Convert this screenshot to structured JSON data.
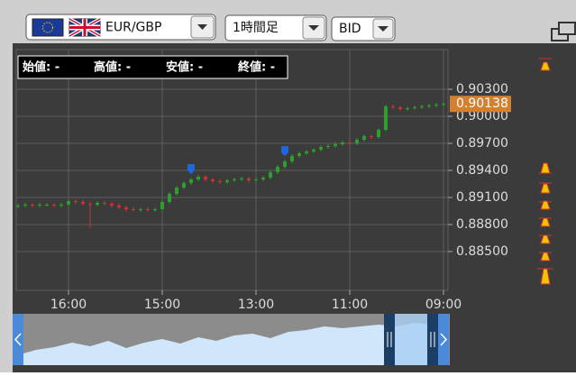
{
  "toolbar": {
    "symbol": "EUR/GBP",
    "timeframe": "1時間足",
    "price_side": "BID"
  },
  "ohlc_header": {
    "open": "始値: -",
    "high": "高値: -",
    "low": "安値: -",
    "close": "終値: -"
  },
  "chart_data": {
    "type": "candlestick",
    "open": [
      0.89,
      0.8901,
      0.8902,
      0.8901,
      0.8902,
      0.8902,
      0.8901,
      0.8902,
      0.8906,
      0.8905,
      0.8903,
      0.8902,
      0.8904,
      0.8903,
      0.8901,
      0.8899,
      0.8897,
      0.8896,
      0.8897,
      0.8896,
      0.8897,
      0.8905,
      0.8914,
      0.8921,
      0.8926,
      0.893,
      0.8933,
      0.893,
      0.8928,
      0.8927,
      0.8929,
      0.893,
      0.8931,
      0.8929,
      0.893,
      0.8932,
      0.8938,
      0.8944,
      0.895,
      0.8956,
      0.8959,
      0.8961,
      0.8963,
      0.8966,
      0.8967,
      0.8969,
      0.8971,
      0.897,
      0.8974,
      0.8978,
      0.8977,
      0.8985,
      0.9011,
      0.901,
      0.9008,
      0.9009,
      0.901,
      0.9011,
      0.9012,
      0.9013
    ],
    "high": [
      0.8903,
      0.8904,
      0.8904,
      0.8904,
      0.8904,
      0.8904,
      0.8904,
      0.8908,
      0.8908,
      0.8907,
      0.8905,
      0.8906,
      0.8906,
      0.8905,
      0.8903,
      0.8901,
      0.8899,
      0.8899,
      0.8899,
      0.8899,
      0.8907,
      0.8916,
      0.8923,
      0.8928,
      0.8932,
      0.8935,
      0.8935,
      0.8932,
      0.893,
      0.8931,
      0.8932,
      0.8933,
      0.8933,
      0.8932,
      0.8934,
      0.894,
      0.8946,
      0.8952,
      0.8958,
      0.8961,
      0.8963,
      0.8965,
      0.8968,
      0.8969,
      0.8971,
      0.8973,
      0.8973,
      0.8976,
      0.898,
      0.898,
      0.8987,
      0.9013,
      0.9013,
      0.9012,
      0.9011,
      0.9012,
      0.9013,
      0.9014,
      0.9015,
      0.9016
    ],
    "low": [
      0.8898,
      0.8899,
      0.8899,
      0.8899,
      0.89,
      0.8899,
      0.8899,
      0.89,
      0.8903,
      0.8901,
      0.8876,
      0.89,
      0.8901,
      0.8899,
      0.8897,
      0.8895,
      0.8894,
      0.8894,
      0.8894,
      0.8894,
      0.8895,
      0.8903,
      0.8912,
      0.8919,
      0.8924,
      0.8928,
      0.8928,
      0.8926,
      0.8925,
      0.8925,
      0.8927,
      0.8928,
      0.8927,
      0.8927,
      0.8928,
      0.893,
      0.8936,
      0.8942,
      0.8948,
      0.8954,
      0.8957,
      0.8959,
      0.8961,
      0.8964,
      0.8965,
      0.8967,
      0.8968,
      0.8968,
      0.8972,
      0.8975,
      0.8975,
      0.8983,
      0.9008,
      0.9006,
      0.9006,
      0.9007,
      0.9008,
      0.9009,
      0.901,
      0.9011
    ],
    "close": [
      0.8901,
      0.8902,
      0.8901,
      0.8902,
      0.8902,
      0.8901,
      0.8902,
      0.8906,
      0.8905,
      0.8903,
      0.8902,
      0.8904,
      0.8903,
      0.8901,
      0.8899,
      0.8897,
      0.8896,
      0.8897,
      0.8896,
      0.8897,
      0.8905,
      0.8914,
      0.8921,
      0.8926,
      0.893,
      0.8933,
      0.893,
      0.8928,
      0.8927,
      0.8929,
      0.893,
      0.8931,
      0.8929,
      0.893,
      0.8932,
      0.8938,
      0.8944,
      0.895,
      0.8956,
      0.8959,
      0.8961,
      0.8963,
      0.8966,
      0.8967,
      0.8969,
      0.8971,
      0.897,
      0.8974,
      0.8978,
      0.8977,
      0.8985,
      0.9011,
      0.901,
      0.9008,
      0.9009,
      0.901,
      0.9011,
      0.9012,
      0.9013,
      0.90138
    ],
    "up_color": "#2f9e2f",
    "down_color": "#cc3333",
    "last_price": 0.90138,
    "last_price_color": "#d4802e",
    "event_markers": [
      24,
      37
    ],
    "xlim": [
      -0.25,
      59.625
    ],
    "xticks": [
      {
        "value": 7,
        "label": "16:00"
      },
      {
        "value": 20,
        "label": "15:00"
      },
      {
        "value": 33,
        "label": "13:00"
      },
      {
        "value": 46,
        "label": "11:00"
      },
      {
        "value": 59,
        "label": "09:00"
      }
    ],
    "ylim": [
      0.8807,
      0.9074
    ],
    "yticks": [
      {
        "value": 0.885,
        "label": "0.88500"
      },
      {
        "value": 0.888,
        "label": "0.88800"
      },
      {
        "value": 0.891,
        "label": "0.89100"
      },
      {
        "value": 0.894,
        "label": "0.89400"
      },
      {
        "value": 0.897,
        "label": "0.89700"
      },
      {
        "value": 0.9,
        "label": "0.90000"
      },
      {
        "value": 0.903,
        "label": "0.90300"
      }
    ],
    "grid": true
  }
}
